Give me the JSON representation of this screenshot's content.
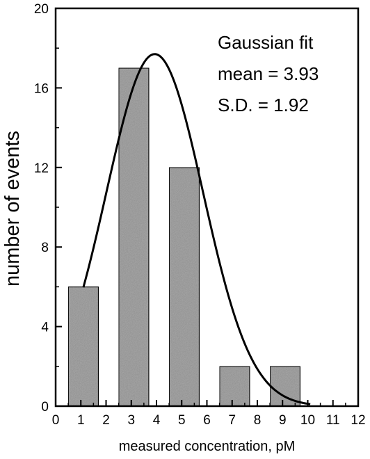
{
  "chart_data": {
    "type": "bar",
    "title": "",
    "xlabel": "measured concentration, pM",
    "ylabel": "number of events",
    "xlim": [
      0,
      12
    ],
    "ylim": [
      0,
      20
    ],
    "x_ticks": [
      0,
      1,
      2,
      3,
      4,
      5,
      6,
      7,
      8,
      9,
      10,
      11,
      12
    ],
    "y_ticks": [
      0,
      4,
      8,
      12,
      16,
      20
    ],
    "grid": false,
    "bins": [
      {
        "x0": 0.5,
        "x1": 1.7,
        "value": 6
      },
      {
        "x0": 2.5,
        "x1": 3.7,
        "value": 17
      },
      {
        "x0": 4.5,
        "x1": 5.7,
        "value": 12
      },
      {
        "x0": 6.5,
        "x1": 7.7,
        "value": 2
      },
      {
        "x0": 8.5,
        "x1": 9.7,
        "value": 2
      }
    ],
    "fit": {
      "type": "gaussian",
      "mean": 3.93,
      "sd": 1.92,
      "peak": 17.7,
      "x_range": [
        1.1,
        10.1
      ]
    },
    "annotations": [
      "Gaussian fit",
      "mean = 3.93",
      "S.D. = 1.92"
    ],
    "colors": {
      "bar_fill": "#b4b4b4",
      "bar_edge": "#000000",
      "line": "#000000"
    }
  }
}
